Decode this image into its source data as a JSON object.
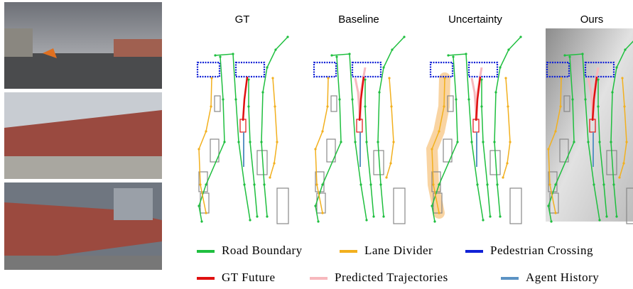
{
  "panels": [
    {
      "title": "GT"
    },
    {
      "title": "Baseline"
    },
    {
      "title": "Uncertainty"
    },
    {
      "title": "Ours"
    }
  ],
  "legend": [
    {
      "label": "Road Boundary",
      "color": "#1fbf3f"
    },
    {
      "label": "Lane Divider",
      "color": "#f2b01e"
    },
    {
      "label": "Pedestrian Crossing",
      "color": "#1021d6"
    },
    {
      "label": "GT Future",
      "color": "#e01010"
    },
    {
      "label": "Predicted Trajectories",
      "color": "#f7b8bd"
    },
    {
      "label": "Agent History",
      "color": "#5b93c4"
    }
  ]
}
